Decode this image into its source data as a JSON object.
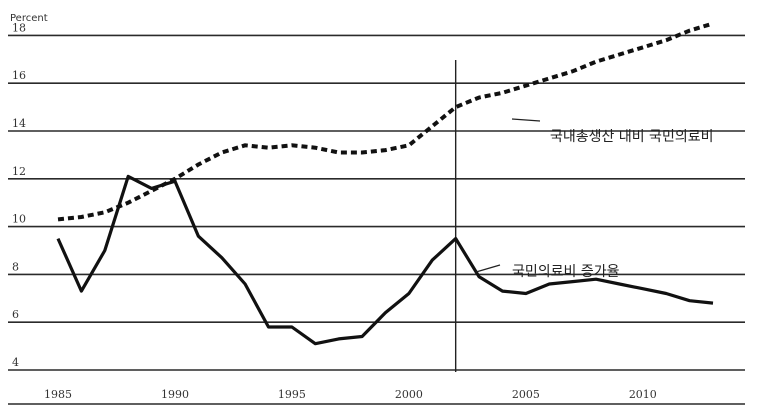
{
  "chart_data": {
    "type": "line",
    "ylabel": "Percent",
    "ylim": [
      4,
      19
    ],
    "yticks": [
      4,
      6,
      8,
      10,
      12,
      14,
      16,
      18
    ],
    "xlim": [
      1985,
      2013
    ],
    "xticks": [
      1985,
      1990,
      1995,
      2000,
      2005,
      2010
    ],
    "grid": true,
    "reference_line_x": 2002,
    "series": [
      {
        "name": "국내총생산 대비 국민의료비",
        "style": "dashed",
        "x": [
          1985,
          1986,
          1987,
          1988,
          1989,
          1990,
          1991,
          1992,
          1993,
          1994,
          1995,
          1996,
          1997,
          1998,
          1999,
          2000,
          2001,
          2002,
          2003,
          2004,
          2005,
          2006,
          2007,
          2008,
          2009,
          2010,
          2011,
          2012,
          2013
        ],
        "values": [
          10.3,
          10.4,
          10.6,
          11.0,
          11.5,
          12.0,
          12.6,
          13.1,
          13.4,
          13.3,
          13.4,
          13.3,
          13.1,
          13.1,
          13.2,
          13.4,
          14.2,
          15.0,
          15.4,
          15.6,
          15.9,
          16.2,
          16.5,
          16.9,
          17.2,
          17.5,
          17.8,
          18.2,
          18.5
        ]
      },
      {
        "name": "국민의료비 증가율",
        "style": "solid",
        "x": [
          1985,
          1986,
          1987,
          1988,
          1989,
          1990,
          1991,
          1992,
          1993,
          1994,
          1995,
          1996,
          1997,
          1998,
          1999,
          2000,
          2001,
          2002,
          2003,
          2004,
          2005,
          2006,
          2007,
          2008,
          2009,
          2010,
          2011,
          2012,
          2013
        ],
        "values": [
          9.5,
          7.3,
          9.0,
          12.1,
          11.6,
          11.9,
          9.6,
          8.7,
          7.6,
          5.8,
          5.8,
          5.1,
          5.3,
          5.4,
          6.4,
          7.2,
          8.6,
          9.5,
          7.9,
          7.3,
          7.2,
          7.6,
          7.7,
          7.8,
          7.6,
          7.4,
          7.2,
          6.9,
          6.8
        ]
      }
    ],
    "annotations": [
      {
        "text": "국내총생산 대비 국민의료비",
        "series": 0
      },
      {
        "text": "국민의료비 증가율",
        "series": 1
      }
    ]
  }
}
